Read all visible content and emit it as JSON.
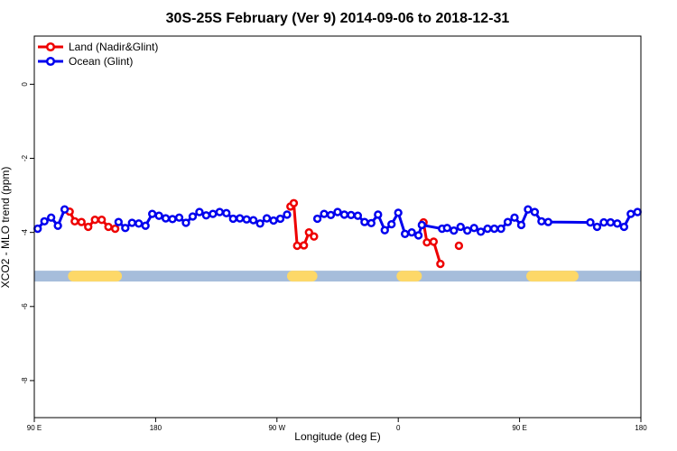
{
  "chart_data": {
    "type": "line",
    "title": "30S-25S February (Ver 9)   2014-09-06 to 2018-12-31",
    "xlabel": "Longitude (deg E)",
    "ylabel": "XCO2 - MLO trend (ppm)",
    "xlim": [
      90,
      450
    ],
    "ylim": [
      -9.0,
      1.3
    ],
    "x_ticks": [
      {
        "value": 90,
        "label": "90 E"
      },
      {
        "value": 162,
        "label": "180"
      },
      {
        "value": 234,
        "label": "90 W"
      },
      {
        "value": 306,
        "label": "0"
      },
      {
        "value": 378,
        "label": "90 E"
      },
      {
        "value": 450,
        "label": "180"
      }
    ],
    "y_ticks": [
      {
        "value": 0,
        "label": "0"
      },
      {
        "value": -2,
        "label": "-2"
      },
      {
        "value": -4,
        "label": "-4"
      },
      {
        "value": -6,
        "label": "-6"
      },
      {
        "value": -8,
        "label": "-8"
      }
    ],
    "legend": {
      "position": "top-left"
    },
    "series": [
      {
        "name": "Land (Nadir&Glint)",
        "color": "#ee0000",
        "x": [
          111,
          114,
          118,
          122,
          126,
          130,
          134,
          138,
          242,
          244,
          246,
          250,
          253,
          256,
          321,
          323,
          327,
          331,
          342
        ],
        "y": [
          -3.44,
          -3.7,
          -3.72,
          -3.85,
          -3.66,
          -3.66,
          -3.85,
          -3.9,
          -3.3,
          -3.21,
          -4.36,
          -4.35,
          -4.0,
          -4.11,
          -3.73,
          -4.27,
          -4.25,
          -4.85,
          -4.36
        ],
        "segments": [
          [
            0,
            7
          ],
          [
            8,
            13
          ],
          [
            14,
            17
          ],
          [
            18,
            18
          ]
        ]
      },
      {
        "name": "Ocean (Glint)",
        "color": "#0000ee",
        "x": [
          92,
          96,
          100,
          104,
          108,
          140,
          144,
          148,
          152,
          156,
          160,
          164,
          168,
          172,
          176,
          180,
          184,
          188,
          192,
          196,
          200,
          204,
          208,
          212,
          216,
          220,
          224,
          228,
          232,
          236,
          240,
          258,
          262,
          266,
          270,
          274,
          278,
          282,
          286,
          290,
          294,
          298,
          302,
          306,
          310,
          314,
          318,
          320,
          332,
          335,
          339,
          343,
          347,
          351,
          355,
          359,
          363,
          367,
          371,
          375,
          379,
          383,
          387,
          391,
          395,
          420,
          424,
          428,
          432,
          436,
          440,
          444,
          448
        ],
        "y": [
          -3.9,
          -3.7,
          -3.6,
          -3.82,
          -3.38,
          -3.72,
          -3.88,
          -3.74,
          -3.76,
          -3.82,
          -3.5,
          -3.55,
          -3.62,
          -3.64,
          -3.6,
          -3.74,
          -3.57,
          -3.45,
          -3.54,
          -3.5,
          -3.45,
          -3.48,
          -3.63,
          -3.62,
          -3.65,
          -3.67,
          -3.76,
          -3.62,
          -3.68,
          -3.63,
          -3.52,
          -3.63,
          -3.5,
          -3.53,
          -3.45,
          -3.52,
          -3.53,
          -3.55,
          -3.72,
          -3.75,
          -3.52,
          -3.94,
          -3.78,
          -3.47,
          -4.04,
          -4.0,
          -4.08,
          -3.8,
          -3.9,
          -3.88,
          -3.95,
          -3.85,
          -3.95,
          -3.88,
          -3.98,
          -3.9,
          -3.9,
          -3.9,
          -3.72,
          -3.6,
          -3.8,
          -3.38,
          -3.45,
          -3.7,
          -3.72,
          -3.73,
          -3.85,
          -3.73,
          -3.73,
          -3.76,
          -3.85,
          -3.5,
          -3.45
        ],
        "segments": [
          [
            0,
            4
          ],
          [
            5,
            30
          ],
          [
            31,
            45
          ],
          [
            46,
            72
          ]
        ]
      }
    ],
    "band": {
      "y": -5.18,
      "base_color": "#a6bddb",
      "land_color": "#fdd868",
      "land_ranges": [
        [
          110,
          142
        ],
        [
          240,
          258
        ],
        [
          305,
          320
        ],
        [
          382,
          413
        ]
      ]
    }
  }
}
